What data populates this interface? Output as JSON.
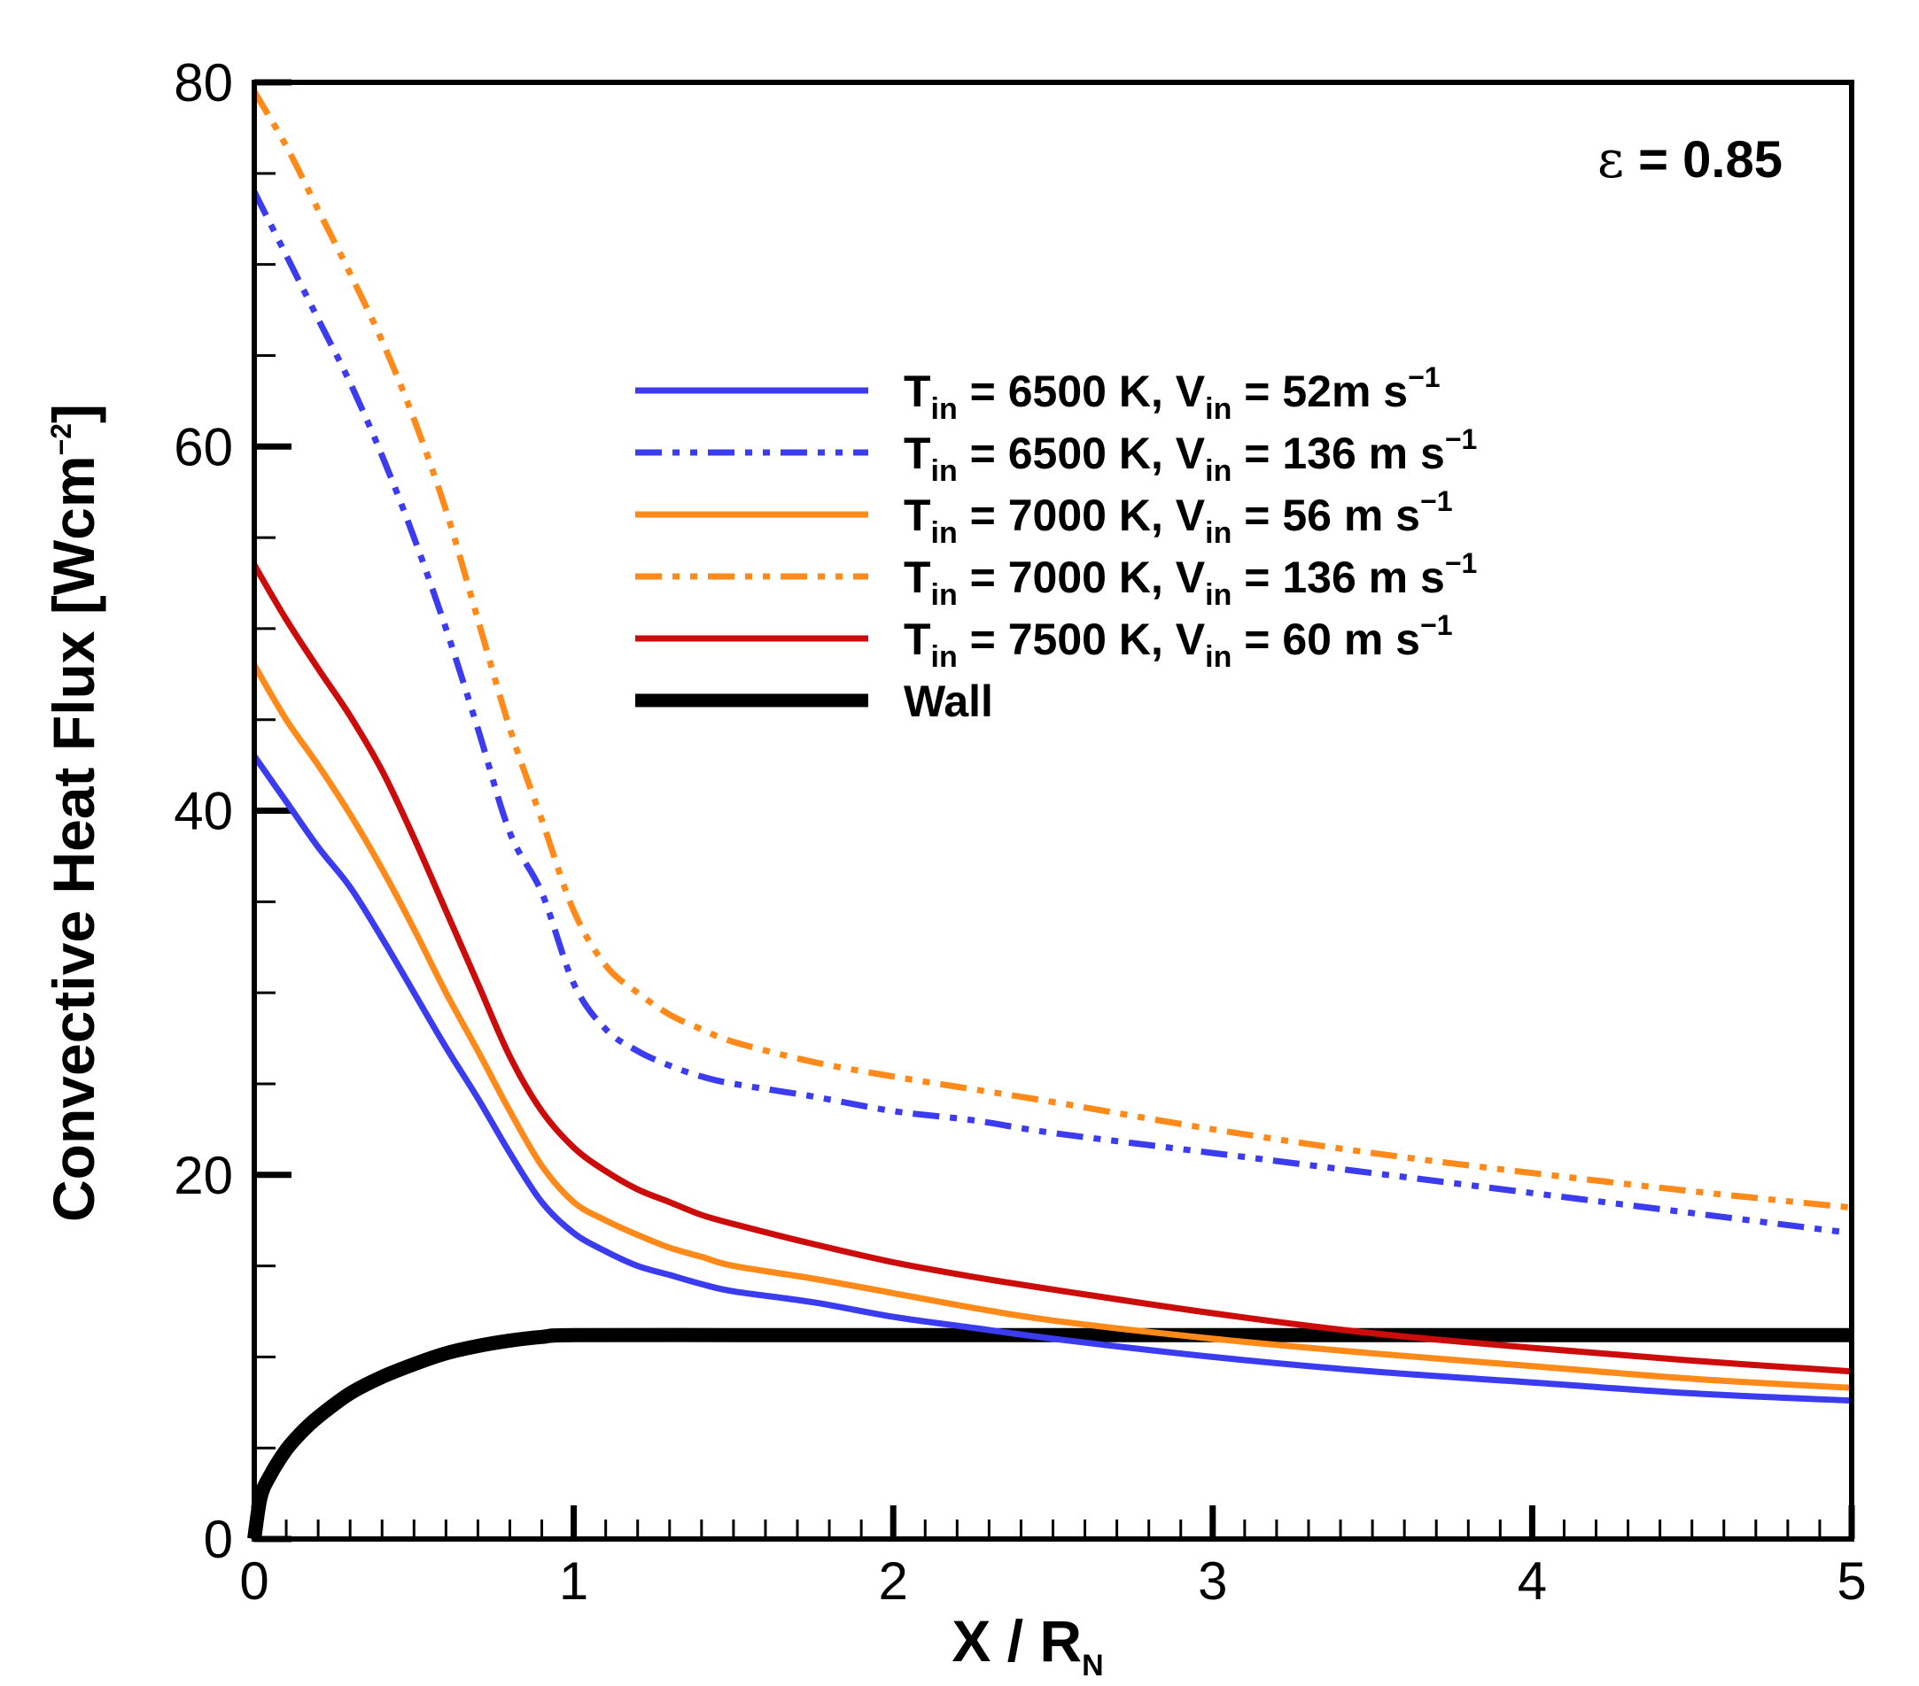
{
  "chart_data": {
    "type": "line",
    "title": "",
    "annotation": {
      "symbol": "ε",
      "text": "= 0.85"
    },
    "xlabel": {
      "main": "X / R",
      "sub": "N"
    },
    "ylabel": {
      "main": "Convective Heat Flux [Wcm",
      "sup": "−2",
      "tail": "]"
    },
    "xlim": [
      0,
      5
    ],
    "ylim": [
      0,
      80
    ],
    "xticks": [
      0,
      1,
      2,
      3,
      4,
      5
    ],
    "xtick_labels": [
      "0",
      "1",
      "2",
      "3",
      "4",
      "5"
    ],
    "yticks": [
      0,
      20,
      40,
      60,
      80
    ],
    "ytick_labels": [
      "0",
      "20",
      "40",
      "60",
      "80"
    ],
    "legend_position": "upper-center",
    "series": [
      {
        "name": "Tin = 6500 K, Vin = 52m s-1",
        "label": {
          "p1": "T",
          "s1": "in",
          "p2": " = 6500 K, V",
          "s2": "in",
          "p3": " = 52m s",
          "sup": "−1"
        },
        "color": "#3b3bf0",
        "style": "solid",
        "x": [
          0,
          0.1,
          0.2,
          0.3,
          0.4,
          0.5,
          0.6,
          0.7,
          0.8,
          0.9,
          1.0,
          1.1,
          1.2,
          1.3,
          1.4,
          1.5,
          1.75,
          2.0,
          2.25,
          2.5,
          3.0,
          3.5,
          4.0,
          4.5,
          5.0
        ],
        "y": [
          43,
          40.5,
          38,
          35.8,
          33,
          30,
          27,
          24.2,
          21.2,
          18.5,
          16.8,
          15.8,
          15.0,
          14.5,
          14.0,
          13.6,
          13.0,
          12.2,
          11.6,
          11.0,
          10.0,
          9.2,
          8.6,
          8.0,
          7.6
        ]
      },
      {
        "name": "Tin = 6500 K, Vin = 136 m s-1",
        "label": {
          "p1": "T",
          "s1": "in",
          "p2": " = 6500 K, V",
          "s2": "in",
          "p3": " = 136 m s",
          "sup": "−1"
        },
        "color": "#3b3bf0",
        "style": "dashdotdot",
        "x": [
          0,
          0.1,
          0.2,
          0.3,
          0.4,
          0.5,
          0.6,
          0.7,
          0.8,
          0.9,
          1.0,
          1.1,
          1.2,
          1.3,
          1.4,
          1.5,
          1.75,
          2.0,
          2.25,
          2.5,
          3.0,
          3.5,
          4.0,
          4.5,
          5.0
        ],
        "y": [
          74,
          70.5,
          67,
          63.5,
          59.5,
          55,
          50,
          44.5,
          38.8,
          35.5,
          30.5,
          28.0,
          26.8,
          26.0,
          25.4,
          25.0,
          24.3,
          23.5,
          23.0,
          22.3,
          21.2,
          20.1,
          19.0,
          17.9,
          16.8
        ]
      },
      {
        "name": "Tin = 7000 K, Vin = 56 m s-1",
        "label": {
          "p1": "T",
          "s1": "in",
          "p2": " = 7000 K, V",
          "s2": "in",
          "p3": " = 56 m s",
          "sup": "−1"
        },
        "color": "#ff8a1a",
        "style": "solid",
        "x": [
          0,
          0.1,
          0.2,
          0.3,
          0.4,
          0.5,
          0.6,
          0.7,
          0.8,
          0.9,
          1.0,
          1.1,
          1.2,
          1.3,
          1.4,
          1.5,
          1.75,
          2.0,
          2.25,
          2.5,
          3.0,
          3.5,
          4.0,
          4.5,
          5.0
        ],
        "y": [
          48,
          45,
          42.5,
          39.8,
          36.8,
          33.5,
          30,
          26.8,
          23.5,
          20.5,
          18.5,
          17.5,
          16.7,
          16.0,
          15.5,
          15.0,
          14.3,
          13.5,
          12.7,
          12.0,
          11.0,
          10.2,
          9.5,
          8.8,
          8.3
        ]
      },
      {
        "name": "Tin = 7000 K, Vin = 136 m s-1",
        "label": {
          "p1": "T",
          "s1": "in",
          "p2": " = 7000 K, V",
          "s2": "in",
          "p3": " = 136 m s",
          "sup": "−1"
        },
        "color": "#ff8a1a",
        "style": "dashdotdot",
        "x": [
          0,
          0.1,
          0.2,
          0.3,
          0.4,
          0.5,
          0.6,
          0.7,
          0.8,
          0.9,
          1.0,
          1.1,
          1.2,
          1.3,
          1.4,
          1.5,
          1.75,
          2.0,
          2.25,
          2.5,
          3.0,
          3.5,
          4.0,
          4.5,
          5.0
        ],
        "y": [
          79.5,
          76.5,
          73,
          69.5,
          65.8,
          61.5,
          56.5,
          50.5,
          44.5,
          39.5,
          34.5,
          31.5,
          30.0,
          28.8,
          28.0,
          27.3,
          26.2,
          25.4,
          24.7,
          24.0,
          22.5,
          21.2,
          20.1,
          19.1,
          18.2
        ]
      },
      {
        "name": "Tin = 7500 K, Vin = 60 m s-1",
        "label": {
          "p1": "T",
          "s1": "in",
          "p2": " = 7500 K, V",
          "s2": "in",
          "p3": " = 60 m s",
          "sup": "−1"
        },
        "color": "#cc0b0b",
        "style": "solid",
        "x": [
          0,
          0.1,
          0.2,
          0.3,
          0.4,
          0.5,
          0.6,
          0.7,
          0.8,
          0.9,
          1.0,
          1.1,
          1.2,
          1.3,
          1.4,
          1.5,
          1.75,
          2.0,
          2.25,
          2.5,
          3.0,
          3.5,
          4.0,
          4.5,
          5.0
        ],
        "y": [
          53.5,
          50.5,
          47.8,
          45.2,
          42.2,
          38.5,
          34.5,
          30.5,
          26.5,
          23.5,
          21.5,
          20.2,
          19.2,
          18.5,
          17.8,
          17.3,
          16.2,
          15.2,
          14.4,
          13.7,
          12.4,
          11.3,
          10.5,
          9.8,
          9.2
        ]
      },
      {
        "name": "Wall",
        "label": {
          "p1": "Wall",
          "s1": "",
          "p2": "",
          "s2": "",
          "p3": "",
          "sup": ""
        },
        "color": "#000000",
        "style": "thick",
        "x": [
          0,
          0.02,
          0.05,
          0.1,
          0.15,
          0.2,
          0.3,
          0.4,
          0.5,
          0.6,
          0.7,
          0.8,
          0.9,
          1.0,
          1.5,
          2.0,
          3.0,
          4.0,
          5.0
        ],
        "y": [
          0,
          2.3,
          3.5,
          4.9,
          5.9,
          6.7,
          8.0,
          8.9,
          9.6,
          10.2,
          10.6,
          10.9,
          11.1,
          11.2,
          11.2,
          11.2,
          11.2,
          11.2,
          11.2
        ]
      }
    ]
  }
}
